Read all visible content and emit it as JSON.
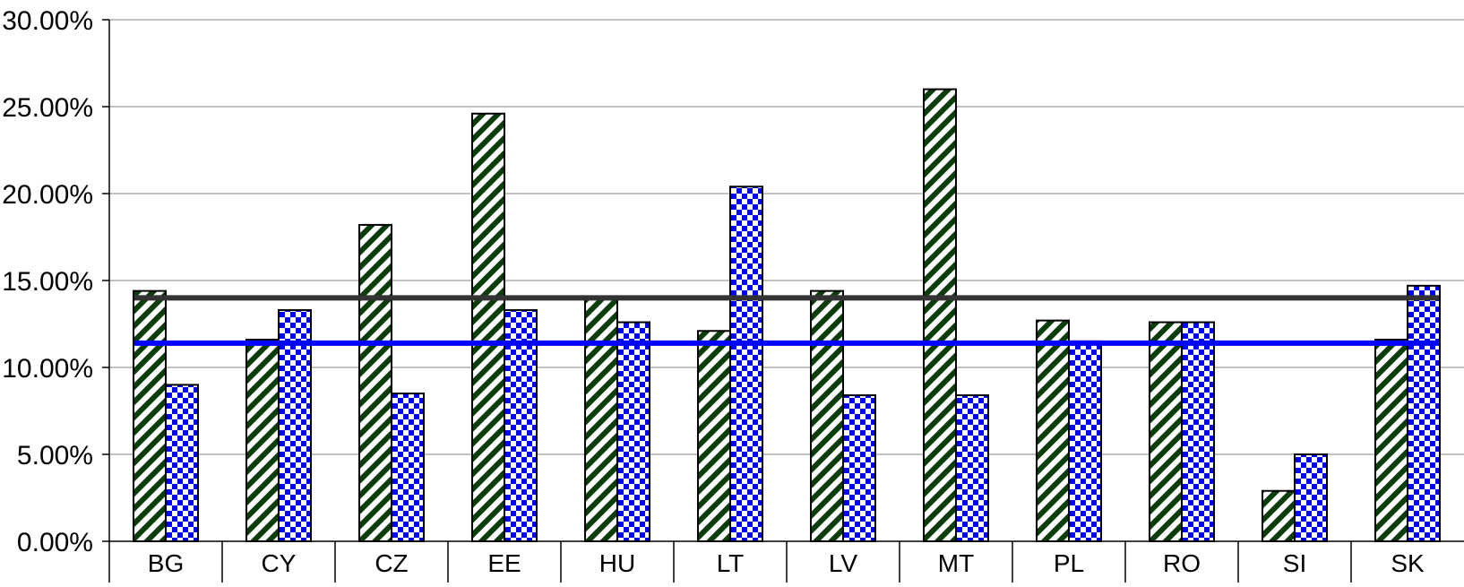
{
  "chart_data": {
    "type": "bar",
    "categories": [
      "BG",
      "CY",
      "CZ",
      "EE",
      "HU",
      "LT",
      "LV",
      "MT",
      "PL",
      "RO",
      "SI",
      "SK"
    ],
    "series": [
      {
        "pattern": "diagonal-hatch",
        "color": "#0b3d0b",
        "values": [
          14.4,
          11.6,
          18.2,
          24.6,
          14.0,
          12.1,
          14.4,
          26.0,
          12.7,
          12.6,
          2.9,
          11.6
        ]
      },
      {
        "pattern": "checkerboard",
        "color": "#0000ff",
        "values": [
          9.0,
          13.3,
          8.5,
          13.3,
          12.6,
          20.4,
          8.4,
          8.4,
          11.5,
          12.6,
          5.0,
          14.7
        ]
      }
    ],
    "reference_lines": [
      {
        "value": 14.0,
        "color": "#333333"
      },
      {
        "value": 11.4,
        "color": "#0000ff"
      }
    ],
    "y_ticks": [
      "0.00%",
      "5.00%",
      "10.00%",
      "15.00%",
      "20.00%",
      "25.00%",
      "30.00%"
    ],
    "ylim": [
      0,
      30
    ],
    "ytick_step": 5,
    "grid": true,
    "legend": "none"
  }
}
